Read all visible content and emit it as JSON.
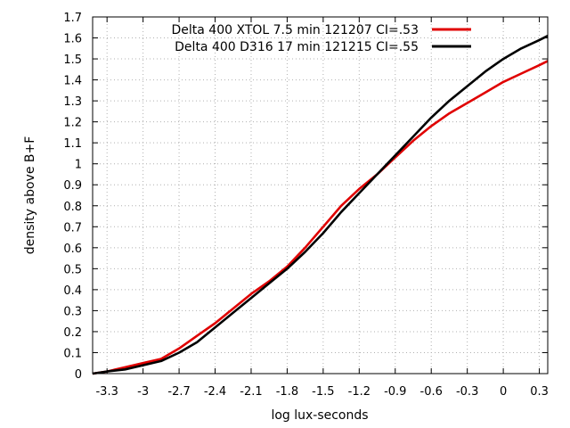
{
  "chart_data": {
    "type": "line",
    "title": "",
    "xlabel": "log lux-seconds",
    "ylabel": "density above B+F",
    "xlim": [
      -3.42,
      0.37
    ],
    "ylim": [
      0,
      1.7
    ],
    "xticks": [
      "-3.3",
      "-3",
      "-2.7",
      "-2.4",
      "-2.1",
      "-1.8",
      "-1.5",
      "-1.2",
      "-0.9",
      "-0.6",
      "-0.3",
      "0",
      "0.3"
    ],
    "yticks": [
      "0",
      "0.1",
      "0.2",
      "0.3",
      "0.4",
      "0.5",
      "0.6",
      "0.7",
      "0.8",
      "0.9",
      "1",
      "1.1",
      "1.2",
      "1.3",
      "1.4",
      "1.5",
      "1.6",
      "1.7"
    ],
    "grid": true,
    "legend_position": "top-right",
    "series": [
      {
        "name": "Delta 400 XTOL 7.5 min 121207 CI=.53",
        "color": "#e00000",
        "x": [
          -3.42,
          -3.3,
          -3.15,
          -3.0,
          -2.85,
          -2.7,
          -2.55,
          -2.4,
          -2.25,
          -2.1,
          -1.95,
          -1.8,
          -1.65,
          -1.5,
          -1.35,
          -1.2,
          -1.05,
          -0.9,
          -0.75,
          -0.6,
          -0.45,
          -0.3,
          -0.15,
          0.0,
          0.15,
          0.3,
          0.37
        ],
        "y": [
          0.0,
          0.01,
          0.03,
          0.05,
          0.07,
          0.12,
          0.18,
          0.24,
          0.31,
          0.38,
          0.44,
          0.51,
          0.6,
          0.7,
          0.8,
          0.88,
          0.95,
          1.03,
          1.11,
          1.18,
          1.24,
          1.29,
          1.34,
          1.39,
          1.43,
          1.47,
          1.49
        ]
      },
      {
        "name": "Delta 400 D316 17 min 121215 CI=.55",
        "color": "#000000",
        "x": [
          -3.42,
          -3.3,
          -3.15,
          -3.0,
          -2.85,
          -2.7,
          -2.55,
          -2.4,
          -2.25,
          -2.1,
          -1.95,
          -1.8,
          -1.65,
          -1.5,
          -1.35,
          -1.2,
          -1.05,
          -0.9,
          -0.75,
          -0.6,
          -0.45,
          -0.3,
          -0.15,
          0.0,
          0.15,
          0.3,
          0.37
        ],
        "y": [
          0.0,
          0.01,
          0.02,
          0.04,
          0.06,
          0.1,
          0.15,
          0.22,
          0.29,
          0.36,
          0.43,
          0.5,
          0.58,
          0.67,
          0.77,
          0.86,
          0.95,
          1.04,
          1.13,
          1.22,
          1.3,
          1.37,
          1.44,
          1.5,
          1.55,
          1.59,
          1.61
        ]
      }
    ]
  }
}
